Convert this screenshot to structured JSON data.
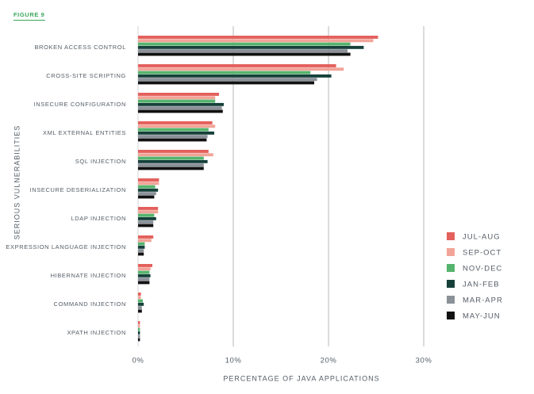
{
  "chart_data": {
    "type": "barh",
    "label": "FIGURE 9",
    "xlabel": "PERCENTAGE OF JAVA APPLICATIONS",
    "ylabel": "SERIOUS VULNERABILITIES",
    "categories": [
      "BROKEN ACCESS CONTROL",
      "CROSS-SITE SCRIPTING",
      "INSECURE CONFIGURATION",
      "XML EXTERNAL ENTITIES",
      "SQL INJECTION",
      "INSECURE DESERIALIZATION",
      "LDAP INJECTION",
      "EXPRESSION LANGUAGE INJECTION",
      "HIBERNATE INJECTION",
      "COMMAND INJECTION",
      "XPATH INJECTION"
    ],
    "series": [
      {
        "name": "JUL-AUG",
        "color": "#e3605d",
        "values": [
          25.2,
          20.8,
          8.5,
          7.8,
          7.4,
          2.2,
          2.1,
          1.6,
          1.5,
          0.3,
          0.2
        ]
      },
      {
        "name": "SEP-OCT",
        "color": "#f2a498",
        "values": [
          24.7,
          21.6,
          8.1,
          8.1,
          7.9,
          2.2,
          2.1,
          1.4,
          1.3,
          0.3,
          0.2
        ]
      },
      {
        "name": "NOV-DEC",
        "color": "#55b46e",
        "values": [
          22.3,
          18.1,
          8.1,
          7.4,
          6.9,
          1.8,
          1.7,
          0.7,
          1.2,
          0.5,
          0.2
        ]
      },
      {
        "name": "JAN-FEB",
        "color": "#16403a",
        "values": [
          23.7,
          20.3,
          9.0,
          8.0,
          7.3,
          2.1,
          1.9,
          0.7,
          1.3,
          0.6,
          0.2
        ]
      },
      {
        "name": "MAR-APR",
        "color": "#8b9199",
        "values": [
          22.0,
          18.8,
          8.8,
          7.3,
          6.9,
          1.9,
          1.6,
          0.6,
          1.2,
          0.4,
          0.2
        ]
      },
      {
        "name": "MAY-JUN",
        "color": "#111111",
        "values": [
          22.3,
          18.5,
          8.9,
          7.2,
          6.9,
          1.7,
          1.6,
          0.6,
          1.2,
          0.4,
          0.2
        ]
      }
    ],
    "xlim": [
      0,
      30
    ],
    "xticks": [
      {
        "value": 0,
        "label": "0%"
      },
      {
        "value": 10,
        "label": "10%"
      },
      {
        "value": 20,
        "label": "20%"
      },
      {
        "value": 30,
        "label": "30%"
      }
    ],
    "grid": true,
    "legend": "right"
  }
}
